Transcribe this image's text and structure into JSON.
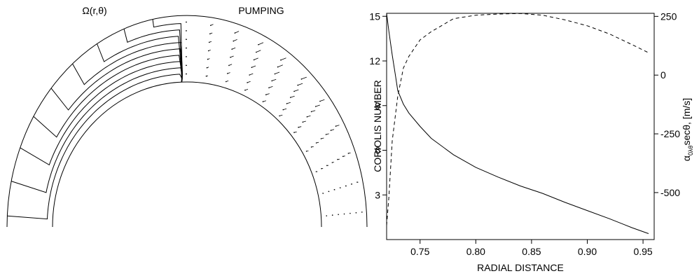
{
  "panels": {
    "left_title": "Ω(r,θ)",
    "middle_title": "PUMPING"
  },
  "chart_data": {
    "type": "line",
    "title": "",
    "xlabel": "RADIAL DISTANCE",
    "ylabel": "CORIOLIS NUMBER",
    "ylabel_right_main": "α",
    "ylabel_right_sub": "0λθ",
    "ylabel_right_rest": "secθ, [m/s]",
    "xlim": [
      0.72,
      0.96
    ],
    "ylim": [
      0,
      15.2
    ],
    "ylim_right": [
      -700,
      263
    ],
    "x_ticks": [
      0.75,
      0.8,
      0.85,
      0.9,
      0.95
    ],
    "x_tick_labels": [
      "0.75",
      "0.80",
      "0.85",
      "0.90",
      "0.95"
    ],
    "y_ticks": [
      3,
      6,
      9,
      12,
      15
    ],
    "y_tick_labels": [
      "3",
      "6",
      "9",
      "12",
      "15"
    ],
    "y_right_ticks": [
      250,
      0,
      -250,
      -500
    ],
    "y_right_tick_labels": [
      "250",
      "0",
      "-250",
      "-500"
    ],
    "grid": false,
    "series": [
      {
        "axis": "left",
        "style": "solid",
        "x": [
          0.72,
          0.722,
          0.725,
          0.728,
          0.73,
          0.735,
          0.74,
          0.75,
          0.76,
          0.78,
          0.8,
          0.82,
          0.84,
          0.86,
          0.88,
          0.9,
          0.92,
          0.94,
          0.955
        ],
        "values": [
          15.2,
          14.0,
          12.4,
          11.0,
          10.0,
          9.1,
          8.5,
          7.6,
          6.8,
          5.7,
          4.85,
          4.2,
          3.6,
          3.1,
          2.5,
          1.95,
          1.4,
          0.8,
          0.4
        ]
      },
      {
        "axis": "right",
        "style": "dashed",
        "x": [
          0.72,
          0.722,
          0.725,
          0.73,
          0.735,
          0.74,
          0.75,
          0.76,
          0.78,
          0.8,
          0.82,
          0.84,
          0.86,
          0.88,
          0.9,
          0.92,
          0.94,
          0.955
        ],
        "values": [
          -640,
          -520,
          -280,
          -90,
          30,
          80,
          150,
          185,
          240,
          255,
          260,
          262,
          255,
          235,
          210,
          175,
          130,
          95
        ]
      }
    ]
  }
}
